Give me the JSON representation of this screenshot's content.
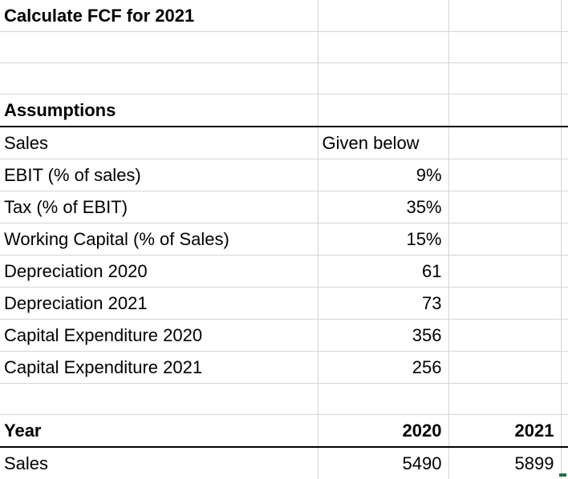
{
  "title": "Calculate FCF for 2021",
  "assumptions": {
    "heading": "Assumptions",
    "rows": [
      {
        "label": "Sales",
        "value": "Given below"
      },
      {
        "label": "EBIT (% of sales)",
        "value": "9%"
      },
      {
        "label": "Tax (% of EBIT)",
        "value": "35%"
      },
      {
        "label": "Working Capital (% of Sales)",
        "value": "15%"
      },
      {
        "label": "Depreciation 2020",
        "value": "61"
      },
      {
        "label": "Depreciation 2021",
        "value": "73"
      },
      {
        "label": "Capital Expenditure 2020",
        "value": "356"
      },
      {
        "label": "Capital Expenditure 2021",
        "value": "256"
      }
    ]
  },
  "year_table": {
    "header_label": "Year",
    "years": [
      "2020",
      "2021"
    ],
    "sales_label": "Sales",
    "sales_values": [
      "5490",
      "5899"
    ]
  }
}
